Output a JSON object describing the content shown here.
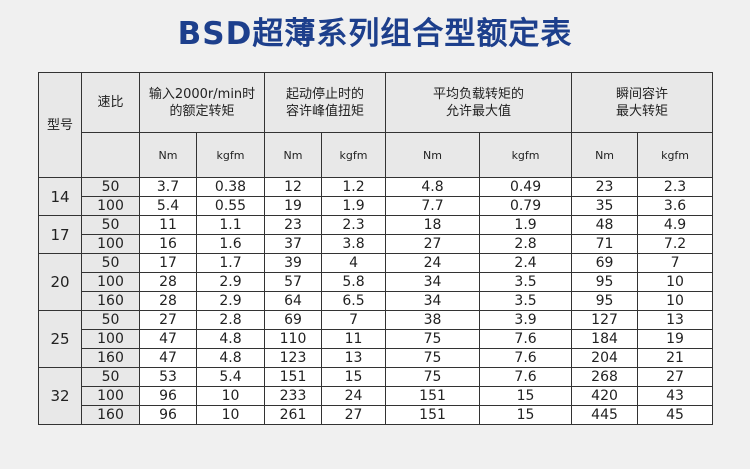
{
  "title": "BSD超薄系列组合型额定表",
  "headers": {
    "model": "型号",
    "ratio": "速比",
    "rated_line1": "输入2000r/min时",
    "rated_line2": "的额定转矩",
    "peak_line1": "起动停止时的",
    "peak_line2": "容许峰值扭矩",
    "avg_line1": "平均负载转矩的",
    "avg_line2": "允许最大值",
    "inst_line1": "瞬间容许",
    "inst_line2": "最大转矩",
    "unit_nm": "Nm",
    "unit_kgfm": "kgfm"
  },
  "groups": [
    {
      "model": "14",
      "rows": [
        {
          "ratio": "50",
          "vals": [
            "3.7",
            "0.38",
            "12",
            "1.2",
            "4.8",
            "0.49",
            "23",
            "2.3"
          ]
        },
        {
          "ratio": "100",
          "vals": [
            "5.4",
            "0.55",
            "19",
            "1.9",
            "7.7",
            "0.79",
            "35",
            "3.6"
          ]
        }
      ]
    },
    {
      "model": "17",
      "rows": [
        {
          "ratio": "50",
          "vals": [
            "11",
            "1.1",
            "23",
            "2.3",
            "18",
            "1.9",
            "48",
            "4.9"
          ]
        },
        {
          "ratio": "100",
          "vals": [
            "16",
            "1.6",
            "37",
            "3.8",
            "27",
            "2.8",
            "71",
            "7.2"
          ]
        }
      ]
    },
    {
      "model": "20",
      "rows": [
        {
          "ratio": "50",
          "vals": [
            "17",
            "1.7",
            "39",
            "4",
            "24",
            "2.4",
            "69",
            "7"
          ]
        },
        {
          "ratio": "100",
          "vals": [
            "28",
            "2.9",
            "57",
            "5.8",
            "34",
            "3.5",
            "95",
            "10"
          ]
        },
        {
          "ratio": "160",
          "vals": [
            "28",
            "2.9",
            "64",
            "6.5",
            "34",
            "3.5",
            "95",
            "10"
          ]
        }
      ]
    },
    {
      "model": "25",
      "rows": [
        {
          "ratio": "50",
          "vals": [
            "27",
            "2.8",
            "69",
            "7",
            "38",
            "3.9",
            "127",
            "13"
          ]
        },
        {
          "ratio": "100",
          "vals": [
            "47",
            "4.8",
            "110",
            "11",
            "75",
            "7.6",
            "184",
            "19"
          ]
        },
        {
          "ratio": "160",
          "vals": [
            "47",
            "4.8",
            "123",
            "13",
            "75",
            "7.6",
            "204",
            "21"
          ]
        }
      ]
    },
    {
      "model": "32",
      "rows": [
        {
          "ratio": "50",
          "vals": [
            "53",
            "5.4",
            "151",
            "15",
            "75",
            "7.6",
            "268",
            "27"
          ]
        },
        {
          "ratio": "100",
          "vals": [
            "96",
            "10",
            "233",
            "24",
            "151",
            "15",
            "420",
            "43"
          ]
        },
        {
          "ratio": "160",
          "vals": [
            "96",
            "10",
            "261",
            "27",
            "151",
            "15",
            "445",
            "45"
          ]
        }
      ]
    }
  ]
}
